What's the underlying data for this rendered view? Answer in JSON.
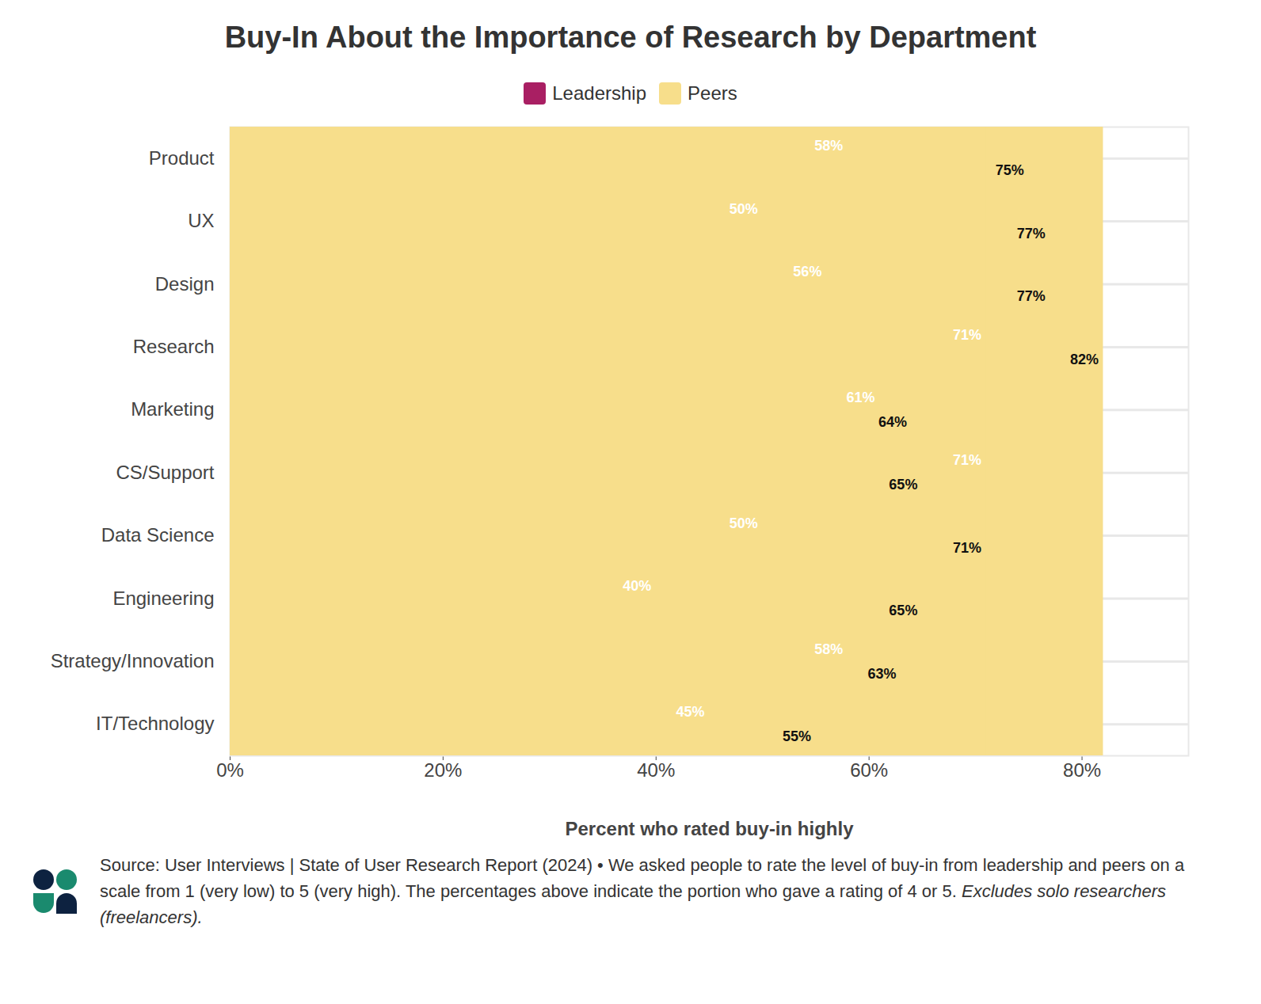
{
  "chart_data": {
    "type": "bar",
    "title": "Buy-In About the Importance of Research by Department",
    "orientation": "horizontal",
    "categories": [
      "Product",
      "UX",
      "Design",
      "Research",
      "Marketing",
      "CS/Support",
      "Data Science",
      "Engineering",
      "Strategy/Innovation",
      "IT/Technology"
    ],
    "series": [
      {
        "name": "Leadership",
        "color": "#a91f63",
        "values": [
          58,
          50,
          56,
          71,
          61,
          71,
          50,
          40,
          58,
          45
        ],
        "value_labels": [
          "58%",
          "50%",
          "56%",
          "71%",
          "61%",
          "71%",
          "50%",
          "40%",
          "58%",
          "45%"
        ]
      },
      {
        "name": "Peers",
        "color": "#f7de8b",
        "values": [
          75,
          77,
          77,
          82,
          64,
          65,
          71,
          65,
          63,
          55
        ],
        "value_labels": [
          "75%",
          "77%",
          "77%",
          "82%",
          "64%",
          "65%",
          "71%",
          "65%",
          "63%",
          "55%"
        ]
      }
    ],
    "xlabel": "Percent who rated buy-in highly",
    "xlim": [
      0,
      90
    ],
    "xticks": [
      {
        "value": 0,
        "label": "0%"
      },
      {
        "value": 20,
        "label": "20%"
      },
      {
        "value": 40,
        "label": "40%"
      },
      {
        "value": 60,
        "label": "60%"
      },
      {
        "value": 80,
        "label": "80%"
      }
    ],
    "grid": true,
    "legend": "top",
    "data_labels": true,
    "caption": "Source: User Interviews | State of User Research Report (2024) • We asked people to rate the level of buy-in from leadership and peers on a scale from 1 (very low) to 5 (very high). The percentages above indicate the portion who gave a rating of 4 or 5.",
    "caption_note": "Excludes solo researchers (freelancers)."
  }
}
